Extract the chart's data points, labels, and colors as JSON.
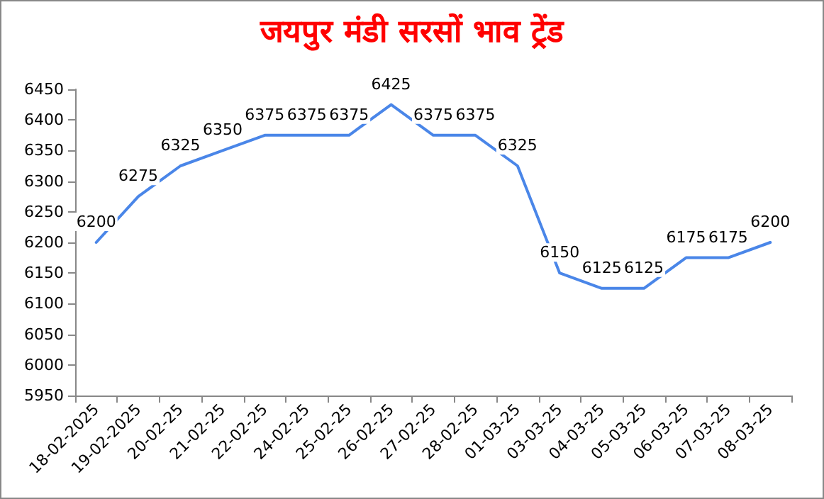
{
  "chart_data": {
    "type": "line",
    "title": "जयपुर मंडी सरसों भाव ट्रेंड",
    "categories": [
      "18-02-2025",
      "19-02-2025",
      "20-02-25",
      "21-02-25",
      "22-02-25",
      "24-02-25",
      "25-02-25",
      "26-02-25",
      "27-02-25",
      "28-02-25",
      "01-03-25",
      "03-03-25",
      "04-03-25",
      "05-03-25",
      "06-03-25",
      "07-03-25",
      "08-03-25"
    ],
    "series": [
      {
        "color": "#4a86e8",
        "values": [
          6200,
          6275,
          6325,
          6350,
          6375,
          6375,
          6375,
          6425,
          6375,
          6375,
          6325,
          6150,
          6125,
          6125,
          6175,
          6175,
          6200
        ]
      }
    ],
    "ylim": [
      5950,
      6450
    ],
    "yticks": [
      5950,
      6000,
      6050,
      6100,
      6150,
      6200,
      6250,
      6300,
      6350,
      6400,
      6450
    ],
    "data_labels": true,
    "grid": false,
    "marker": "none",
    "line_style": "solid"
  }
}
